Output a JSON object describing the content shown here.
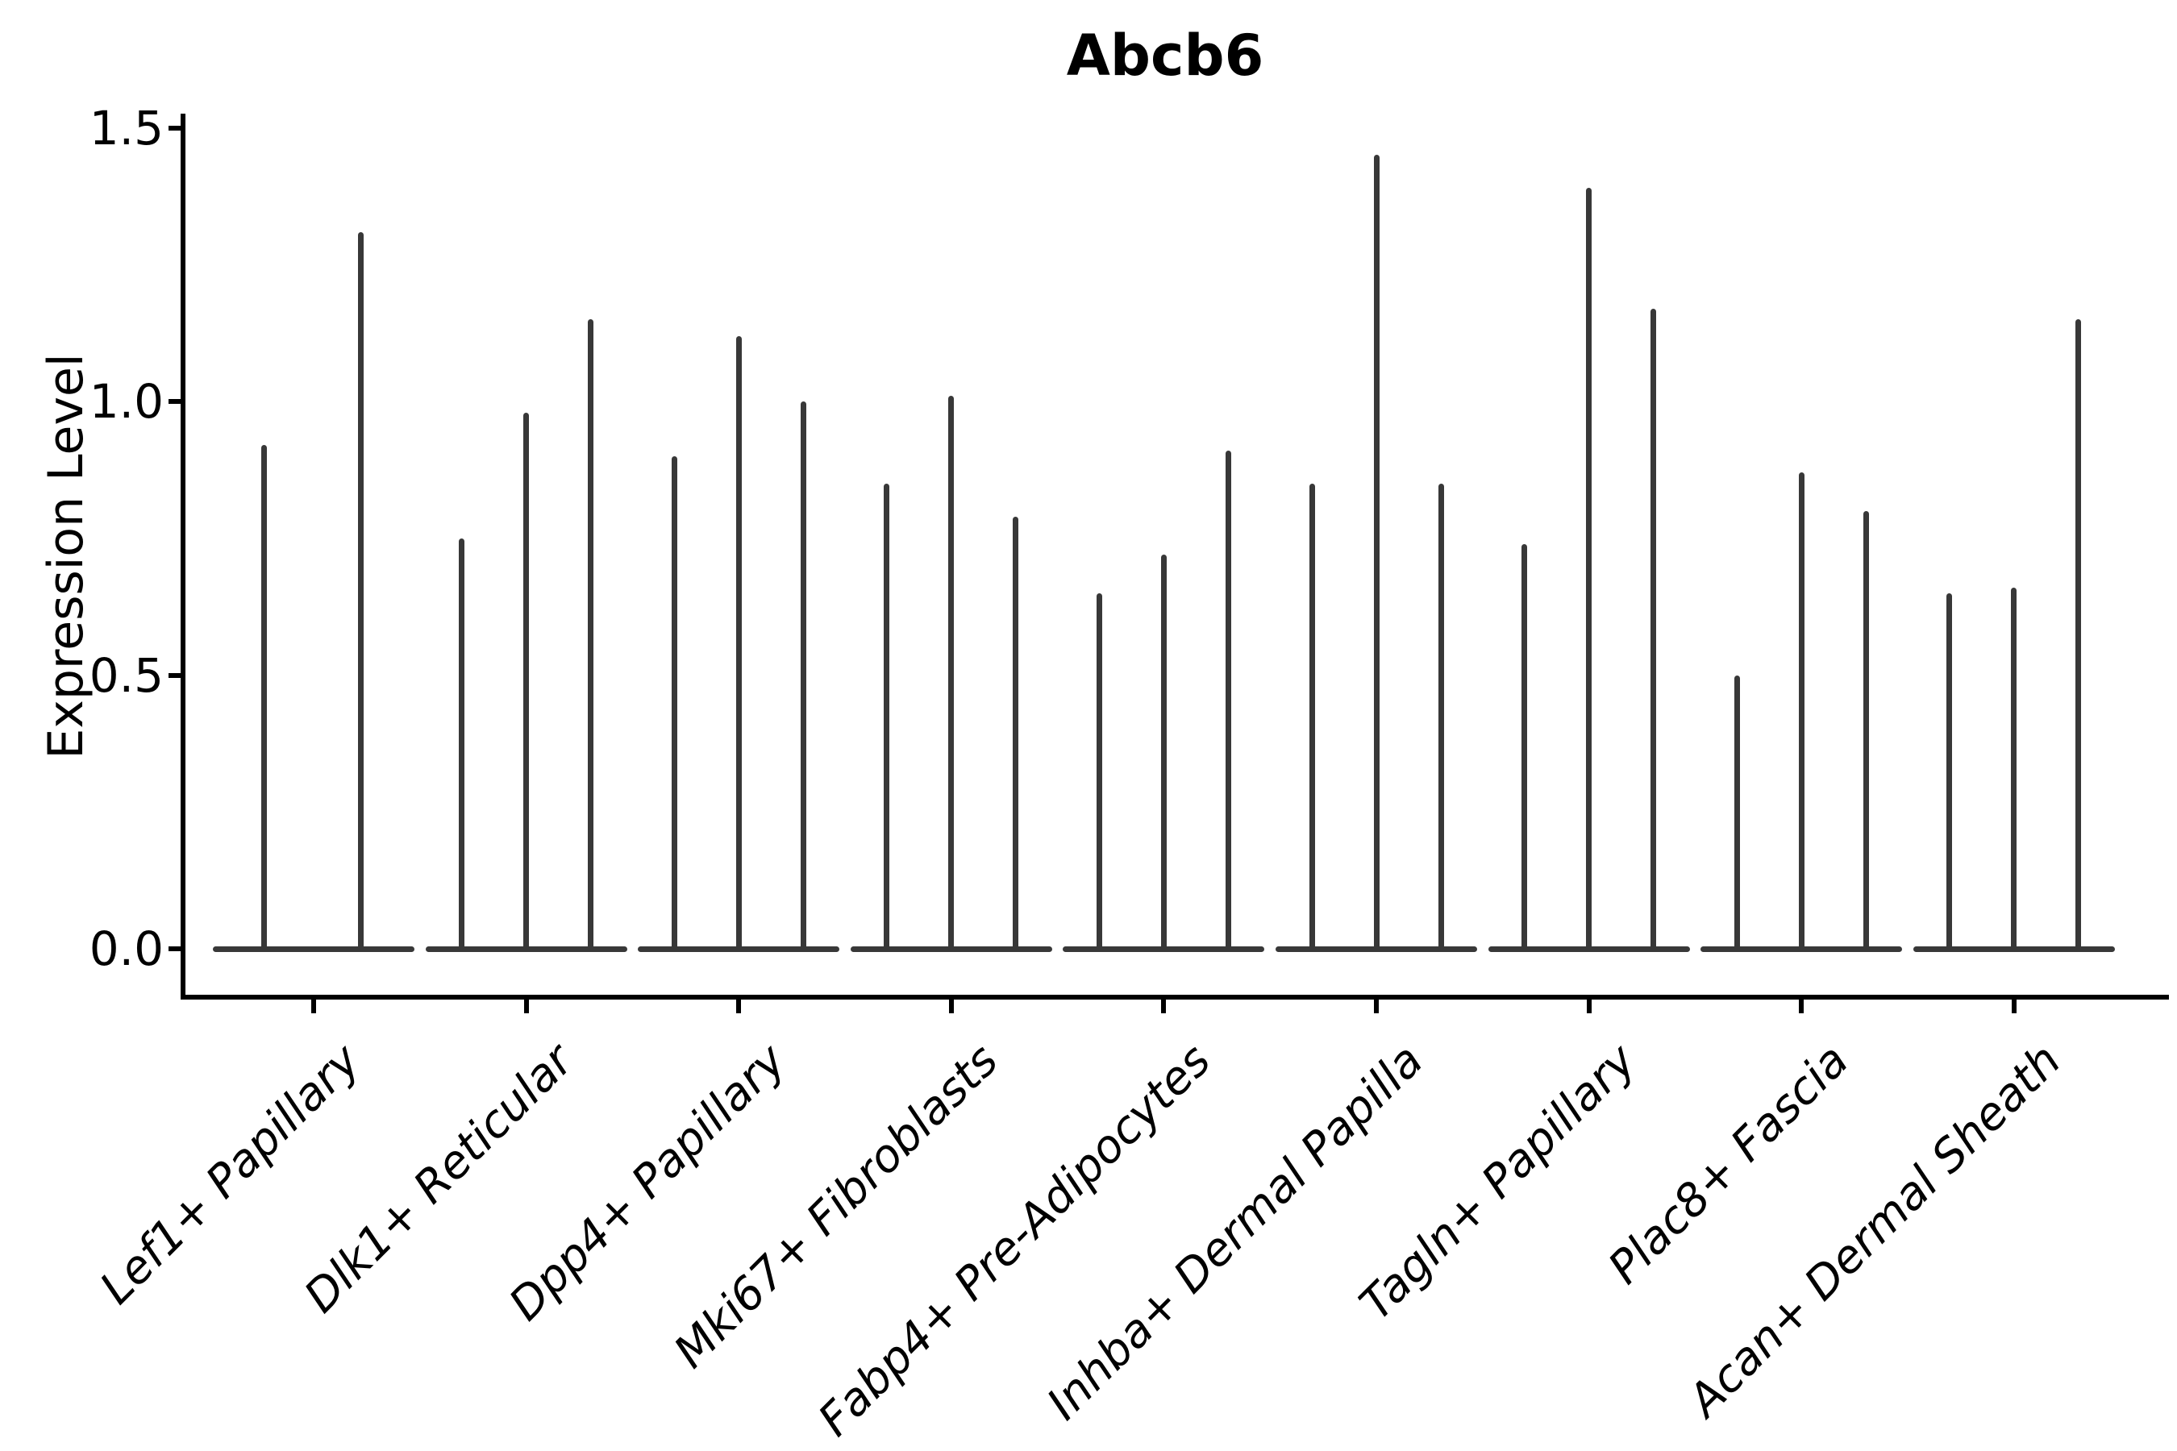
{
  "figure": {
    "background": "#ffffff"
  },
  "colors": {
    "violin_ink": "#383838",
    "axis_ink": "#000000",
    "text_ink": "#000000"
  },
  "chart_data": {
    "type": "violin",
    "title": "Abcb6",
    "ylabel": "Expression Level",
    "xlabel": "",
    "ylim": [
      0,
      1.5
    ],
    "yticks": [
      0.0,
      0.5,
      1.0,
      1.5
    ],
    "ytick_labels": [
      "0.0",
      "0.5",
      "1.0",
      "1.5"
    ],
    "grid": false,
    "legend": "none",
    "style_note": "needle-thin violins with flat base at 0; several thin violins per category",
    "categories": [
      "Lef1+ Papillary",
      "Dlk1+ Reticular",
      "Dpp4+ Papillary",
      "Mki67+ Fibroblasts",
      "Fabp4+ Pre-Adipocytes",
      "Inhba+ Dermal Papilla",
      "Tagln+ Papillary",
      "Plac8+ Fascia",
      "Acan+ Dermal Sheath"
    ],
    "series": [
      {
        "category": "Lef1+ Papillary",
        "violin_peaks": [
          0.92,
          1.31
        ]
      },
      {
        "category": "Dlk1+ Reticular",
        "violin_peaks": [
          0.75,
          0.98,
          1.15
        ]
      },
      {
        "category": "Dpp4+ Papillary",
        "violin_peaks": [
          0.9,
          1.12,
          1.0
        ]
      },
      {
        "category": "Mki67+ Fibroblasts",
        "violin_peaks": [
          0.85,
          1.01,
          0.79
        ]
      },
      {
        "category": "Fabp4+ Pre-Adipocytes",
        "violin_peaks": [
          0.65,
          0.72,
          0.91
        ]
      },
      {
        "category": "Inhba+ Dermal Papilla",
        "violin_peaks": [
          0.85,
          1.45,
          0.85
        ]
      },
      {
        "category": "Tagln+ Papillary",
        "violin_peaks": [
          0.74,
          1.39,
          1.17
        ]
      },
      {
        "category": "Plac8+ Fascia",
        "violin_peaks": [
          0.5,
          0.87,
          0.8
        ]
      },
      {
        "category": "Acan+ Dermal Sheath",
        "violin_peaks": [
          0.65,
          0.66,
          1.15
        ]
      }
    ]
  }
}
